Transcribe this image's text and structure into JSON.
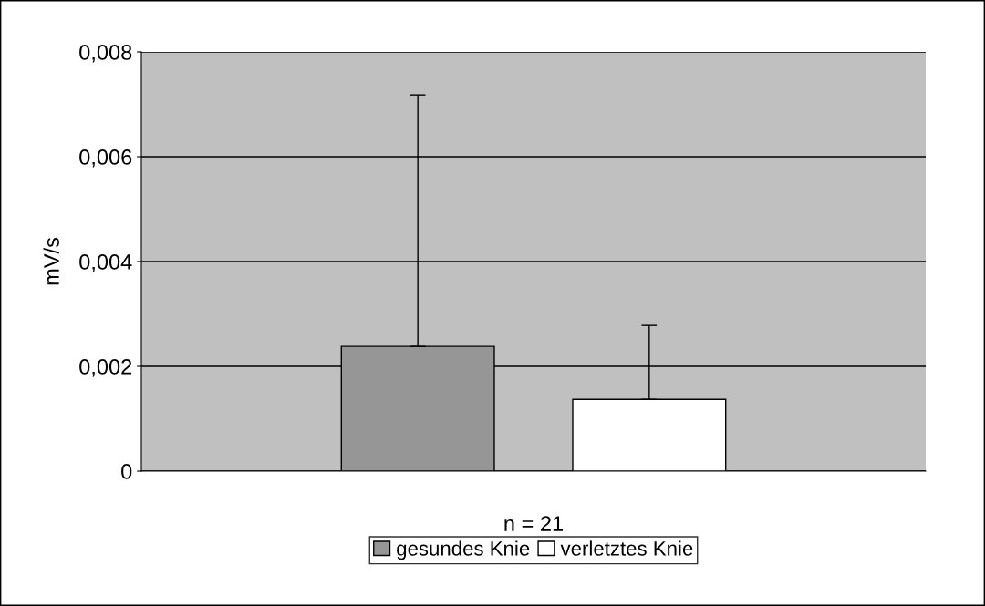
{
  "chart_data": {
    "type": "bar",
    "ylabel": "mV/s",
    "categories": [
      "n = 21"
    ],
    "series": [
      {
        "name": "gesundes Knie",
        "color": "#969696",
        "values": [
          0.00238
        ],
        "errors": [
          [
            0.00238,
            0.00718
          ]
        ]
      },
      {
        "name": "verletztes Knie",
        "color": "#ffffff",
        "values": [
          0.00137
        ],
        "errors": [
          [
            0.00137,
            0.00278
          ]
        ]
      }
    ],
    "ylim": [
      0,
      0.008
    ],
    "yticks": [
      0,
      {
        "value": 0.002,
        "label": "0,002"
      },
      {
        "value": 0.004,
        "label": "0,004"
      },
      {
        "value": 0.006,
        "label": "0,006"
      },
      {
        "value": 0.008,
        "label": "0,008"
      }
    ],
    "grid": "y",
    "legend": "bottom"
  }
}
